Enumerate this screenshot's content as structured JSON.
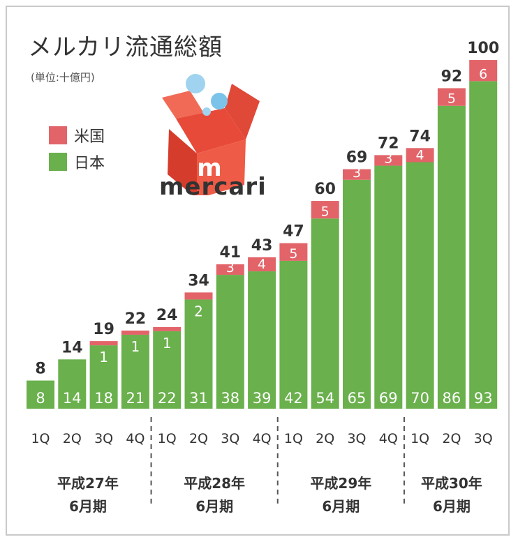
{
  "title": "メルカリ流通総額",
  "unit": "(単位:十億円)",
  "legend": [
    {
      "label": "米国",
      "color": "#e26469"
    },
    {
      "label": "日本",
      "color": "#6ab04c"
    }
  ],
  "logo": {
    "text": "mercari",
    "icon": "mercari-box-logo"
  },
  "colors": {
    "us": "#e26469",
    "japan": "#6ab04c",
    "text": "#333333",
    "divider": "#555555"
  },
  "chart_data": {
    "type": "bar",
    "stacked": true,
    "categories": [
      "1Q",
      "2Q",
      "3Q",
      "4Q",
      "1Q",
      "2Q",
      "3Q",
      "4Q",
      "1Q",
      "2Q",
      "3Q",
      "4Q",
      "1Q",
      "2Q",
      "3Q"
    ],
    "series": [
      {
        "name": "日本",
        "values": [
          8,
          14,
          18,
          21,
          22,
          31,
          38,
          39,
          42,
          54,
          65,
          69,
          70,
          86,
          93
        ],
        "labels": [
          "8",
          "14",
          "18",
          "21",
          "22",
          "31",
          "38",
          "39",
          "42",
          "54",
          "65",
          "69",
          "70",
          "86",
          "93"
        ]
      },
      {
        "name": "米国",
        "values": [
          0,
          0,
          1,
          1,
          1,
          2,
          3,
          4,
          5,
          5,
          3,
          3,
          4,
          5,
          6
        ],
        "labels": [
          "",
          "",
          "1",
          "1",
          "1",
          "2",
          "3",
          "4",
          "5",
          "5",
          "3",
          "3",
          "4",
          "5",
          "6"
        ],
        "label_in_japan_segment": [
          false,
          false,
          true,
          true,
          true,
          true,
          false,
          false,
          false,
          false,
          false,
          false,
          false,
          false,
          false
        ]
      }
    ],
    "totals": [
      "8",
      "14",
      "19",
      "22",
      "24",
      "34",
      "41",
      "43",
      "47",
      "60",
      "69",
      "72",
      "74",
      "92",
      "100"
    ],
    "groups": [
      {
        "label_line1": "平成27年",
        "label_line2": "6月期",
        "start": 0,
        "end": 3
      },
      {
        "label_line1": "平成28年",
        "label_line2": "6月期",
        "start": 4,
        "end": 7
      },
      {
        "label_line1": "平成29年",
        "label_line2": "6月期",
        "start": 8,
        "end": 11
      },
      {
        "label_line1": "平成30年",
        "label_line2": "6月期",
        "start": 12,
        "end": 14
      }
    ],
    "ylim": [
      0,
      100
    ],
    "grid": false,
    "legend_position": "top-left"
  }
}
